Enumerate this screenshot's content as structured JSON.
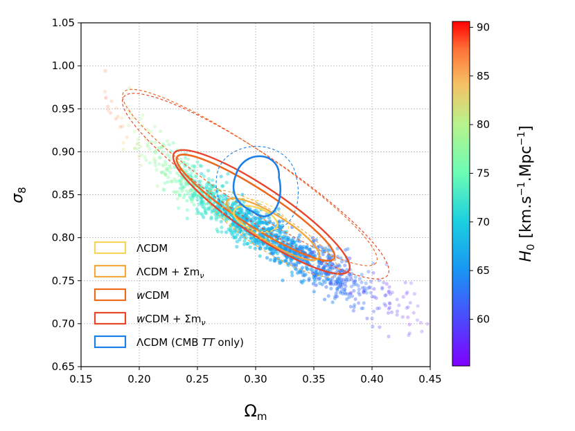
{
  "chart_data": {
    "type": "scatter",
    "title": "",
    "xlabel": "Ω",
    "xlabel_sub": "m",
    "ylabel": "σ",
    "ylabel_sub": "8",
    "xlim": [
      0.15,
      0.45
    ],
    "ylim": [
      0.65,
      1.05
    ],
    "grid": true,
    "x_ticks": [
      "0.15",
      "0.20",
      "0.25",
      "0.30",
      "0.35",
      "0.40",
      "0.45"
    ],
    "y_ticks": [
      "0.65",
      "0.70",
      "0.75",
      "0.80",
      "0.85",
      "0.90",
      "0.95",
      "1.00",
      "1.05"
    ],
    "colorbar": {
      "label": "H",
      "label_sub": "0",
      "label_units": "[km.s",
      "label_units_mid": ".Mpc",
      "label_units_end": "]",
      "label_units_exp": "−1",
      "range": [
        55.2,
        90.6
      ],
      "ticks": [
        "60",
        "65",
        "70",
        "75",
        "80",
        "85",
        "90"
      ],
      "colormap": "rainbow"
    },
    "scatter_cloud": {
      "description_value": "MCMC samples colored by H0",
      "trend": [
        {
          "om": 0.17,
          "s8": 0.97,
          "h0": 88
        },
        {
          "om": 0.2,
          "s8": 0.91,
          "h0": 80
        },
        {
          "om": 0.25,
          "s8": 0.855,
          "h0": 73
        },
        {
          "om": 0.3,
          "s8": 0.81,
          "h0": 68
        },
        {
          "om": 0.35,
          "s8": 0.77,
          "h0": 64
        },
        {
          "om": 0.4,
          "s8": 0.735,
          "h0": 61
        },
        {
          "om": 0.44,
          "s8": 0.71,
          "h0": 57
        }
      ]
    },
    "legend_position": "lower-left",
    "series": [
      {
        "name": "ΛCDM",
        "color": "#f7d55a",
        "om_center": 0.3,
        "s8_center": 0.82
      },
      {
        "name": "ΛCDM + Σm",
        "name_sub": "ν",
        "color": "#f4a73a",
        "om_center": 0.31,
        "s8_center": 0.8
      },
      {
        "name": "CDM",
        "name_prefix": "w",
        "color": "#ec6a1f",
        "om_center": 0.3,
        "s8_center": 0.82
      },
      {
        "name": "CDM + Σm",
        "name_prefix": "w",
        "name_sub": "ν",
        "color": "#e8452a",
        "om_center": 0.3,
        "s8_center": 0.81
      },
      {
        "name": "ΛCDM (CMB ",
        "name_italic": "TT",
        "name_suffix": " only)",
        "color": "#1c7ee8",
        "om_center": 0.3,
        "s8_center": 0.855
      }
    ]
  }
}
